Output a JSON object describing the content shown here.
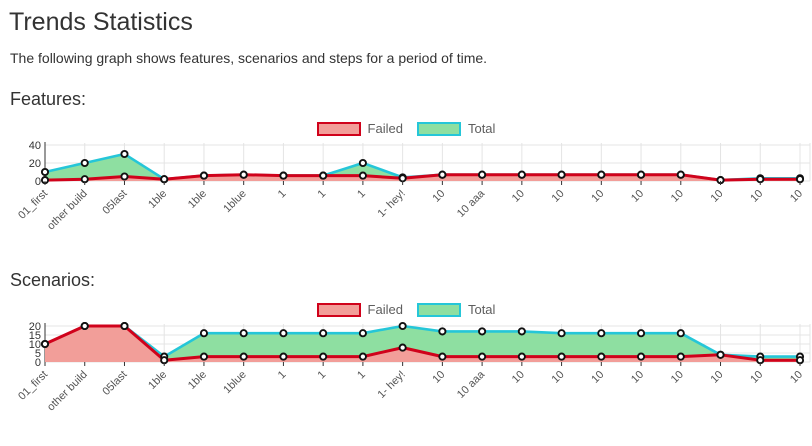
{
  "page": {
    "title": "Trends Statistics",
    "subtitle": "The following graph shows features, scenarios and steps for a period of time."
  },
  "colors": {
    "failed_line": "#d0021b",
    "failed_fill": "#f29e99",
    "total_line": "#25c6d8",
    "total_fill": "#8edfa1",
    "marker_stroke": "#111111",
    "marker_fill": "#ffffff",
    "grid": "#e4e4e4",
    "axis": "#333333",
    "tick_label": "#555555"
  },
  "chart_data": [
    {
      "name": "features",
      "type": "area",
      "title": "Features:",
      "legend_position": "top-center",
      "grid": true,
      "ylim": [
        0,
        40
      ],
      "yticks": [
        0,
        20,
        40
      ],
      "categories": [
        "01_first",
        "other build",
        "05last",
        "1ble",
        "1ble",
        "1blue",
        "1",
        "1",
        "1",
        "1- hey!",
        "10",
        "10 aaa",
        "10",
        "10",
        "10",
        "10",
        "10",
        "10",
        "10",
        "10"
      ],
      "series": [
        {
          "name": "Failed",
          "values": [
            1,
            2,
            5,
            2,
            6,
            7,
            6,
            6,
            6,
            3,
            7,
            7,
            7,
            7,
            7,
            7,
            7,
            1,
            2,
            2
          ]
        },
        {
          "name": "Total",
          "values": [
            10,
            20,
            30,
            2,
            6,
            7,
            6,
            6,
            20,
            4,
            7,
            7,
            7,
            7,
            7,
            7,
            7,
            1,
            3,
            3
          ]
        }
      ]
    },
    {
      "name": "scenarios",
      "type": "area",
      "title": "Scenarios:",
      "legend_position": "top-center",
      "grid": true,
      "ylim": [
        0,
        20
      ],
      "yticks": [
        0,
        5,
        10,
        15,
        20
      ],
      "categories": [
        "01_first",
        "other build",
        "05last",
        "1ble",
        "1ble",
        "1blue",
        "1",
        "1",
        "1",
        "1- hey!",
        "10",
        "10 aaa",
        "10",
        "10",
        "10",
        "10",
        "10",
        "10",
        "10",
        "10"
      ],
      "series": [
        {
          "name": "Failed",
          "values": [
            10,
            20,
            20,
            1,
            3,
            3,
            3,
            3,
            3,
            8,
            3,
            3,
            3,
            3,
            3,
            3,
            3,
            4,
            1,
            1
          ]
        },
        {
          "name": "Total",
          "values": [
            10,
            20,
            20,
            3,
            16,
            16,
            16,
            16,
            16,
            20,
            17,
            17,
            17,
            16,
            16,
            16,
            16,
            4,
            3,
            3
          ]
        }
      ]
    }
  ]
}
